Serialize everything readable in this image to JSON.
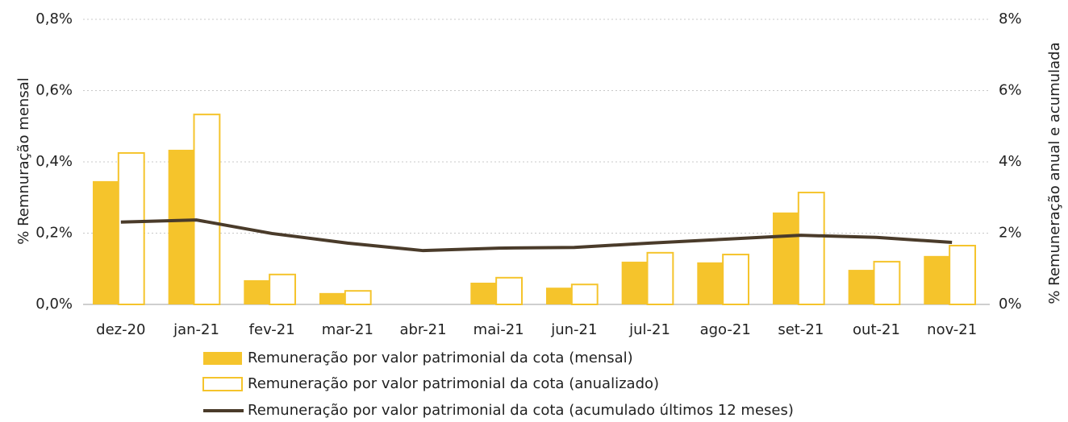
{
  "chart_data": {
    "type": "bar",
    "categories": [
      "dez-20",
      "jan-21",
      "fev-21",
      "mar-21",
      "abr-21",
      "mai-21",
      "jun-21",
      "jul-21",
      "ago-21",
      "set-21",
      "out-21",
      "nov-21"
    ],
    "y_label": "% Remnuração mensal",
    "y2_label": "% Remuneração anual e acumulada",
    "ylim": [
      0,
      0.8
    ],
    "yticks": [
      {
        "value": 0,
        "label": "0,0%"
      },
      {
        "value": 0.2,
        "label": "0,2%"
      },
      {
        "value": 0.4,
        "label": "0,4%"
      },
      {
        "value": 0.6,
        "label": "0,6%"
      },
      {
        "value": 0.8,
        "label": "0,8%"
      }
    ],
    "y2lim": [
      0,
      8
    ],
    "y2ticks": [
      {
        "value": 0,
        "label": "0%"
      },
      {
        "value": 2,
        "label": "2%"
      },
      {
        "value": 4,
        "label": "4%"
      },
      {
        "value": 6,
        "label": "6%"
      },
      {
        "value": 8,
        "label": "8%"
      }
    ],
    "grid": true,
    "series": [
      {
        "name": "Remuneração por valor patrimonial da cota (mensal)",
        "type": "bar",
        "color": "#f5c42c",
        "values": [
          0.346,
          0.434,
          0.068,
          0.032,
          0,
          0.061,
          0.047,
          0.12,
          0.118,
          0.258,
          0.097,
          0.136
        ]
      },
      {
        "name": "Remuneração por valor patrimonial da cota (anualizado)",
        "type": "bar-outline",
        "color": "#f5c42c",
        "axis": "y2",
        "values": [
          4.25,
          5.33,
          0.84,
          0.38,
          0,
          0.75,
          0.56,
          1.45,
          1.4,
          3.14,
          1.2,
          1.65
        ]
      },
      {
        "name": "Remuneração por valor patrimonial da cota (acumulado últimos 12 meses)",
        "type": "line",
        "color": "#4a3b2a",
        "axis": "y2",
        "values": [
          2.31,
          2.37,
          1.99,
          1.72,
          1.51,
          1.58,
          1.6,
          1.72,
          1.83,
          1.94,
          1.88,
          1.74
        ]
      }
    ]
  }
}
